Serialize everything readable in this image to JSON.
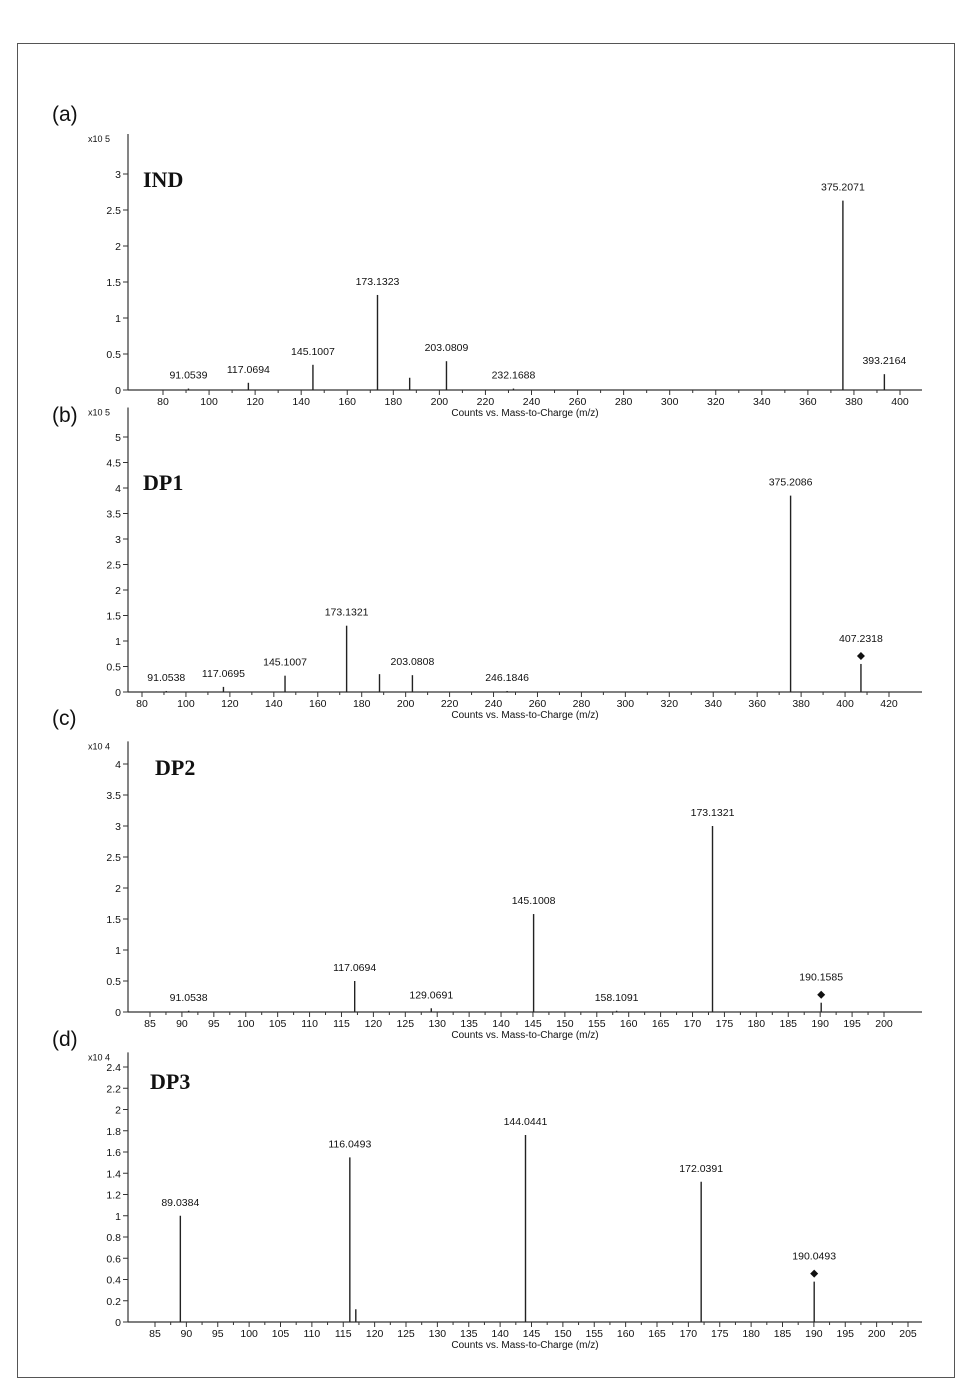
{
  "chart_data": [
    {
      "type": "bar",
      "panel_label": "(a)",
      "compound": "IND",
      "y_multiplier": "x10 5",
      "xlabel": "Counts vs. Mass-to-Charge (m/z)",
      "xlim": [
        68,
        412
      ],
      "xticks": [
        80,
        100,
        120,
        140,
        160,
        180,
        200,
        220,
        240,
        260,
        280,
        300,
        320,
        340,
        360,
        380,
        400
      ],
      "ylim": [
        0,
        3.5
      ],
      "yticks": [
        0,
        0.5,
        1,
        1.5,
        2,
        2.5,
        3
      ],
      "ytick_labels": [
        "0",
        "0.5",
        "1",
        "1.5",
        "2",
        "2.5",
        "3"
      ],
      "peaks": [
        {
          "mz": 91.0539,
          "value": 0.02,
          "label": "91.0539"
        },
        {
          "mz": 117.0694,
          "value": 0.1,
          "label": "117.0694"
        },
        {
          "mz": 145.1007,
          "value": 0.35,
          "label": "145.1007"
        },
        {
          "mz": 173.1323,
          "value": 1.32,
          "label": "173.1323"
        },
        {
          "mz": 187.1,
          "value": 0.17
        },
        {
          "mz": 203.0809,
          "value": 0.4,
          "label": "203.0809"
        },
        {
          "mz": 232.1688,
          "value": 0.02,
          "label": "232.1688"
        },
        {
          "mz": 375.2071,
          "value": 2.63,
          "label": "375.2071"
        },
        {
          "mz": 393.2164,
          "value": 0.22,
          "label": "393.2164"
        }
      ]
    },
    {
      "type": "bar",
      "panel_label": "(b)",
      "compound": "DP1",
      "y_multiplier": "x10 5",
      "xlabel": "Counts vs. Mass-to-Charge (m/z)",
      "xlim": [
        76,
        432
      ],
      "xticks": [
        80,
        100,
        120,
        140,
        160,
        180,
        200,
        220,
        240,
        260,
        280,
        300,
        320,
        340,
        360,
        380,
        400,
        420
      ],
      "ylim": [
        0,
        5.5
      ],
      "yticks": [
        0,
        0.5,
        1,
        1.5,
        2,
        2.5,
        3,
        3.5,
        4,
        4.5,
        5
      ],
      "ytick_labels": [
        "0",
        "0.5",
        "1",
        "1.5",
        "2",
        "2.5",
        "3",
        "3.5",
        "4",
        "4.5",
        "5"
      ],
      "peaks": [
        {
          "mz": 91.0538,
          "value": 0.02,
          "label": "91.0538"
        },
        {
          "mz": 117.0695,
          "value": 0.1,
          "label": "117.0695"
        },
        {
          "mz": 145.1007,
          "value": 0.32,
          "label": "145.1007"
        },
        {
          "mz": 173.1321,
          "value": 1.3,
          "label": "173.1321"
        },
        {
          "mz": 188.1,
          "value": 0.35
        },
        {
          "mz": 203.0808,
          "value": 0.33,
          "label": "203.0808"
        },
        {
          "mz": 246.1846,
          "value": 0.02,
          "label": "246.1846"
        },
        {
          "mz": 375.2086,
          "value": 3.85,
          "label": "375.2086"
        },
        {
          "mz": 407.2318,
          "value": 0.55,
          "label": "407.2318",
          "marker": "diamond"
        }
      ]
    },
    {
      "type": "bar",
      "panel_label": "(c)",
      "compound": "DP2",
      "y_multiplier": "x10 4",
      "xlabel": "Counts vs. Mass-to-Charge (m/z)",
      "xlim": [
        81.5,
        208
      ],
      "xticks": [
        85,
        90,
        95,
        100,
        105,
        110,
        115,
        120,
        125,
        130,
        135,
        140,
        145,
        150,
        155,
        160,
        165,
        170,
        175,
        180,
        185,
        190,
        195,
        200
      ],
      "ylim": [
        0,
        4.3
      ],
      "yticks": [
        0,
        0.5,
        1,
        1.5,
        2,
        2.5,
        3,
        3.5,
        4
      ],
      "ytick_labels": [
        "0",
        "0.5",
        "1",
        "1.5",
        "2",
        "2.5",
        "3",
        "3.5",
        "4"
      ],
      "peaks": [
        {
          "mz": 91.0538,
          "value": 0.02,
          "label": "91.0538"
        },
        {
          "mz": 117.0694,
          "value": 0.5,
          "label": "117.0694"
        },
        {
          "mz": 129.0691,
          "value": 0.06,
          "label": "129.0691"
        },
        {
          "mz": 145.1008,
          "value": 1.58,
          "label": "145.1008"
        },
        {
          "mz": 158.1091,
          "value": 0.02,
          "label": "158.1091"
        },
        {
          "mz": 173.1321,
          "value": 3.0,
          "label": "173.1321"
        },
        {
          "mz": 190.1585,
          "value": 0.15,
          "label": "190.1585",
          "marker": "diamond"
        }
      ]
    },
    {
      "type": "bar",
      "panel_label": "(d)",
      "compound": "DP3",
      "y_multiplier": "x10 4",
      "xlabel": "Counts vs. Mass-to-Charge (m/z)",
      "xlim": [
        80.5,
        207
      ],
      "xticks": [
        85,
        90,
        95,
        100,
        105,
        110,
        115,
        120,
        125,
        130,
        135,
        140,
        145,
        150,
        155,
        160,
        165,
        170,
        175,
        180,
        185,
        190,
        195,
        200,
        205
      ],
      "ylim": [
        0,
        2.5
      ],
      "yticks": [
        0,
        0.2,
        0.4,
        0.6,
        0.8,
        1,
        1.2,
        1.4,
        1.6,
        1.8,
        2,
        2.2,
        2.4
      ],
      "ytick_labels": [
        "0",
        "0.2",
        "0.4",
        "0.6",
        "0.8",
        "1",
        "1.2",
        "1.4",
        "1.6",
        "1.8",
        "2",
        "2.2",
        "2.4"
      ],
      "peaks": [
        {
          "mz": 89.0384,
          "value": 1.0,
          "label": "89.0384"
        },
        {
          "mz": 116.0493,
          "value": 1.55,
          "label": "116.0493"
        },
        {
          "mz": 117.0,
          "value": 0.12
        },
        {
          "mz": 144.0441,
          "value": 1.76,
          "label": "144.0441"
        },
        {
          "mz": 172.0391,
          "value": 1.32,
          "label": "172.0391"
        },
        {
          "mz": 190.0493,
          "value": 0.38,
          "label": "190.0493",
          "marker": "diamond"
        }
      ]
    }
  ]
}
